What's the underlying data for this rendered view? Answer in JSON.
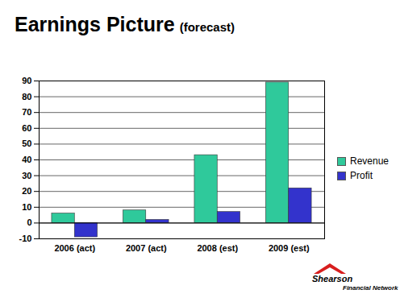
{
  "chart_data": {
    "type": "bar",
    "title": "Earnings Picture",
    "subtitle": "(forecast)",
    "categories": [
      "2006 (act)",
      "2007 (act)",
      "2008 (est)",
      "2009 (est)"
    ],
    "series": [
      {
        "name": "Revenue",
        "color": "#2fc99b",
        "values": [
          6,
          8,
          43,
          89
        ]
      },
      {
        "name": "Profit",
        "color": "#3333cc",
        "values": [
          -9,
          2,
          7,
          22
        ]
      }
    ],
    "ylim": [
      -10,
      90
    ],
    "yticks": [
      -10,
      0,
      10,
      20,
      30,
      40,
      50,
      60,
      70,
      80,
      90
    ],
    "grid": true,
    "legend": "right",
    "logo": [
      "Shearson",
      "Financial Network"
    ]
  }
}
